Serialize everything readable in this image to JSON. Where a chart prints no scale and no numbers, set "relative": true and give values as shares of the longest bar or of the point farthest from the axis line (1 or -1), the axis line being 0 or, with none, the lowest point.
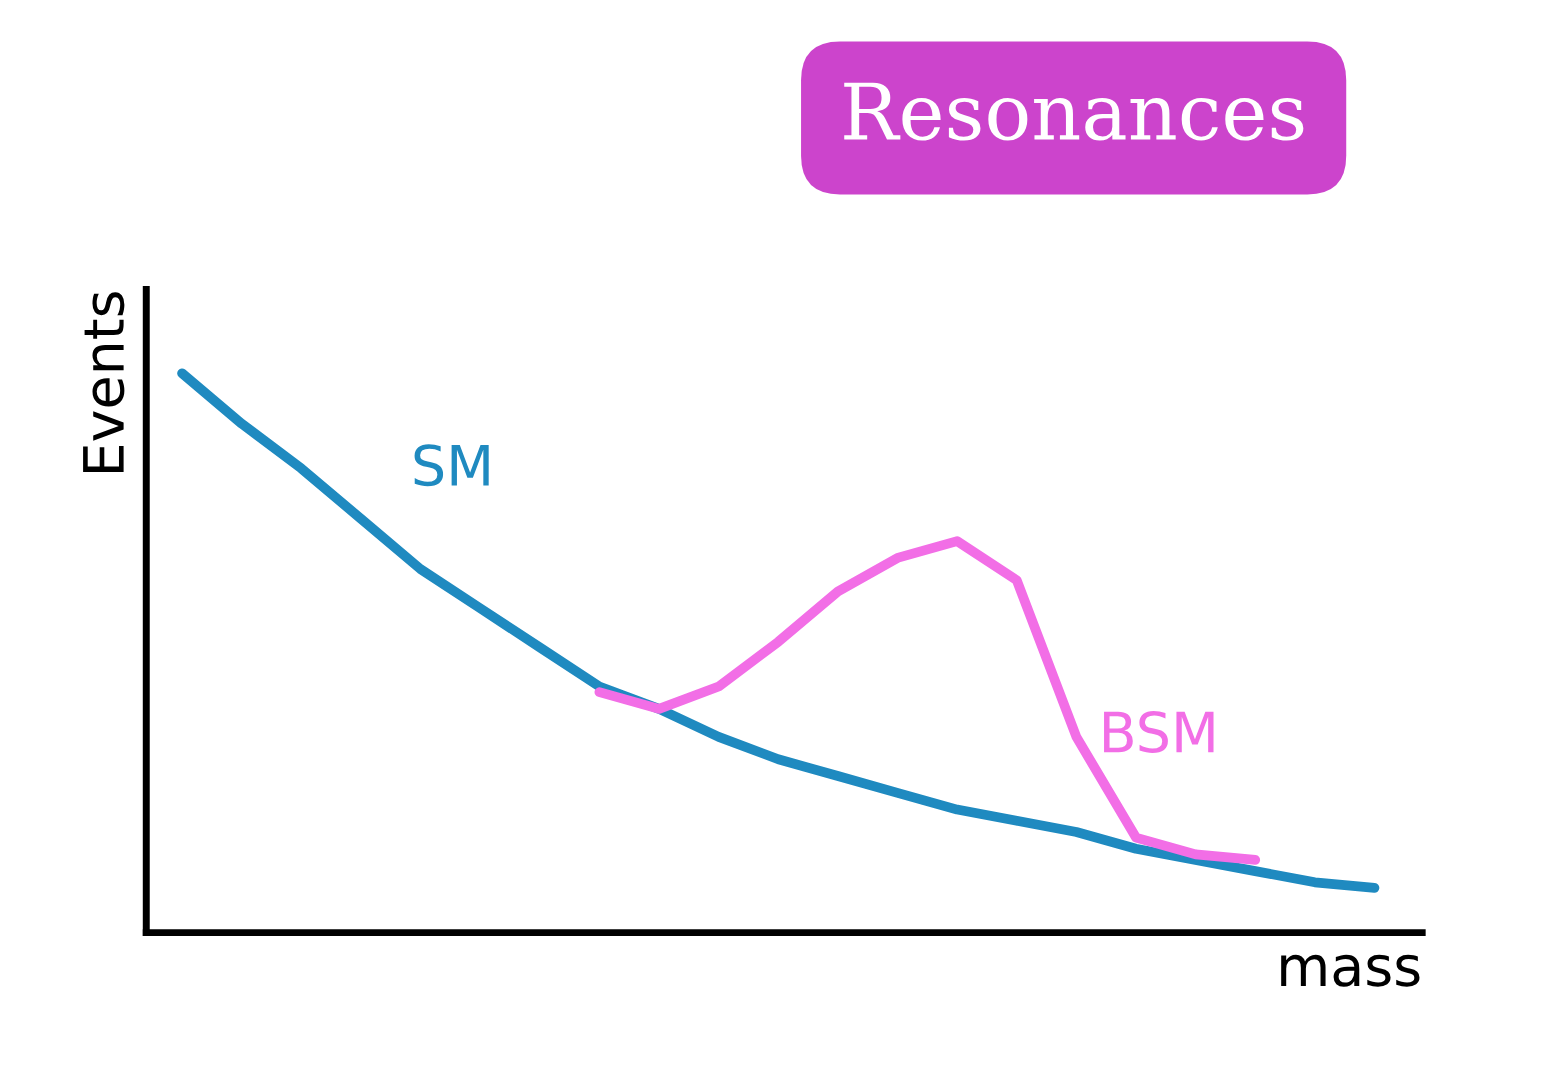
{
  "chart_data": {
    "type": "line",
    "title": "Resonances",
    "xlabel": "mass",
    "ylabel": "Events",
    "relative": true,
    "tick_labels": false,
    "categories": [
      null,
      null,
      null,
      null,
      null,
      null,
      null,
      null,
      null,
      null,
      null,
      null,
      null,
      null,
      null,
      null,
      null,
      null,
      null,
      null,
      null
    ],
    "series": [
      {
        "name": "SM",
        "color": "#1f8ac0",
        "values": [
          1.0,
          0.91,
          0.83,
          0.74,
          0.65,
          0.58,
          0.51,
          0.44,
          0.4,
          0.35,
          0.31,
          0.28,
          0.25,
          0.22,
          0.2,
          0.18,
          0.15,
          0.13,
          0.11,
          0.09,
          0.08
        ]
      },
      {
        "name": "BSM",
        "color": "#f26ee6",
        "values": [
          null,
          null,
          null,
          null,
          null,
          null,
          null,
          0.43,
          0.4,
          0.44,
          0.52,
          0.61,
          0.67,
          0.7,
          0.63,
          0.35,
          0.17,
          0.14,
          0.13,
          null,
          null
        ]
      }
    ]
  }
}
